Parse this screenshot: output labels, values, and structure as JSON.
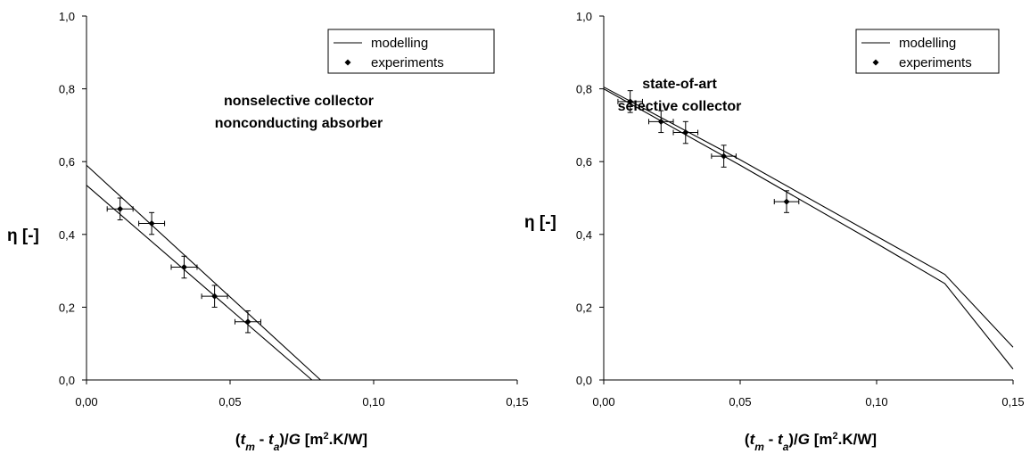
{
  "chart_data": [
    {
      "type": "line",
      "ylabel": "η [-]",
      "xlabel_parts": {
        "open": "(",
        "t1": "t",
        "s1": "m",
        "minus": " - ",
        "t2": "t",
        "s2": "a",
        "close": ")/",
        "g": "G",
        "unit": "  [m",
        "sup": "2",
        "unit_end": ".K/W]"
      },
      "xlim": [
        0,
        0.15
      ],
      "ylim": [
        0,
        1.0
      ],
      "x_ticks": [
        0,
        0.05,
        0.1,
        0.15
      ],
      "x_tick_labels": [
        "0,00",
        "0,05",
        "0,10",
        "0,15"
      ],
      "y_ticks": [
        0,
        0.2,
        0.4,
        0.6,
        0.8,
        1.0
      ],
      "y_tick_labels": [
        "0,0",
        "0,2",
        "0,4",
        "0,6",
        "0,8",
        "1,0"
      ],
      "grid": false,
      "legend_position": "top-right",
      "legend": [
        "modelling",
        "experiments"
      ],
      "annotation": [
        "nonselective collector",
        "nonconducting absorber"
      ],
      "series": [
        {
          "name": "modelling",
          "kind": "line",
          "points": [
            [
              0,
              0.59
            ],
            [
              0.0815,
              0
            ]
          ]
        },
        {
          "name": "modelling",
          "kind": "line",
          "points": [
            [
              0,
              0.535
            ],
            [
              0.0785,
              0
            ]
          ]
        },
        {
          "name": "experiments",
          "kind": "scatter",
          "points": [
            {
              "x": 0.0117,
              "y": 0.47,
              "xerr": 0.0045,
              "yerr": 0.03
            },
            {
              "x": 0.0227,
              "y": 0.43,
              "xerr": 0.0045,
              "yerr": 0.03
            },
            {
              "x": 0.034,
              "y": 0.31,
              "xerr": 0.0045,
              "yerr": 0.03
            },
            {
              "x": 0.0446,
              "y": 0.23,
              "xerr": 0.0045,
              "yerr": 0.03
            },
            {
              "x": 0.0562,
              "y": 0.16,
              "xerr": 0.0045,
              "yerr": 0.03
            }
          ]
        }
      ]
    },
    {
      "type": "line",
      "ylabel": "η [-]",
      "xlabel_parts": {
        "open": "(",
        "t1": "t",
        "s1": "m",
        "minus": " - ",
        "t2": "t",
        "s2": "a",
        "close": ")/",
        "g": "G",
        "unit": "  [m",
        "sup": "2",
        "unit_end": ".K/W]"
      },
      "xlim": [
        0,
        0.15
      ],
      "ylim": [
        0,
        1.0
      ],
      "x_ticks": [
        0,
        0.05,
        0.1,
        0.15
      ],
      "x_tick_labels": [
        "0,00",
        "0,05",
        "0,10",
        "0,15"
      ],
      "y_ticks": [
        0,
        0.2,
        0.4,
        0.6,
        0.8,
        1.0
      ],
      "y_tick_labels": [
        "0,0",
        "0,2",
        "0,4",
        "0,6",
        "0,8",
        "1,0"
      ],
      "grid": false,
      "legend_position": "top-right",
      "legend": [
        "modelling",
        "experiments"
      ],
      "annotation": [
        "state-of-art",
        "selective collector"
      ],
      "series": [
        {
          "name": "modelling",
          "kind": "line",
          "points": [
            [
              0,
              0.805
            ],
            [
              0.05,
              0.605
            ],
            [
              0.1,
              0.395
            ],
            [
              0.125,
              0.29
            ],
            [
              0.15,
              0.09
            ]
          ]
        },
        {
          "name": "modelling",
          "kind": "line",
          "points": [
            [
              0,
              0.8
            ],
            [
              0.05,
              0.59
            ],
            [
              0.1,
              0.375
            ],
            [
              0.125,
              0.265
            ],
            [
              0.15,
              0.03
            ]
          ]
        },
        {
          "name": "experiments",
          "kind": "scatter",
          "points": [
            {
              "x": 0.0097,
              "y": 0.765,
              "xerr": 0.0045,
              "yerr": 0.03
            },
            {
              "x": 0.021,
              "y": 0.71,
              "xerr": 0.0045,
              "yerr": 0.03
            },
            {
              "x": 0.03,
              "y": 0.68,
              "xerr": 0.0045,
              "yerr": 0.03
            },
            {
              "x": 0.044,
              "y": 0.615,
              "xerr": 0.0045,
              "yerr": 0.03
            },
            {
              "x": 0.067,
              "y": 0.49,
              "xerr": 0.0045,
              "yerr": 0.03
            }
          ]
        }
      ]
    }
  ]
}
